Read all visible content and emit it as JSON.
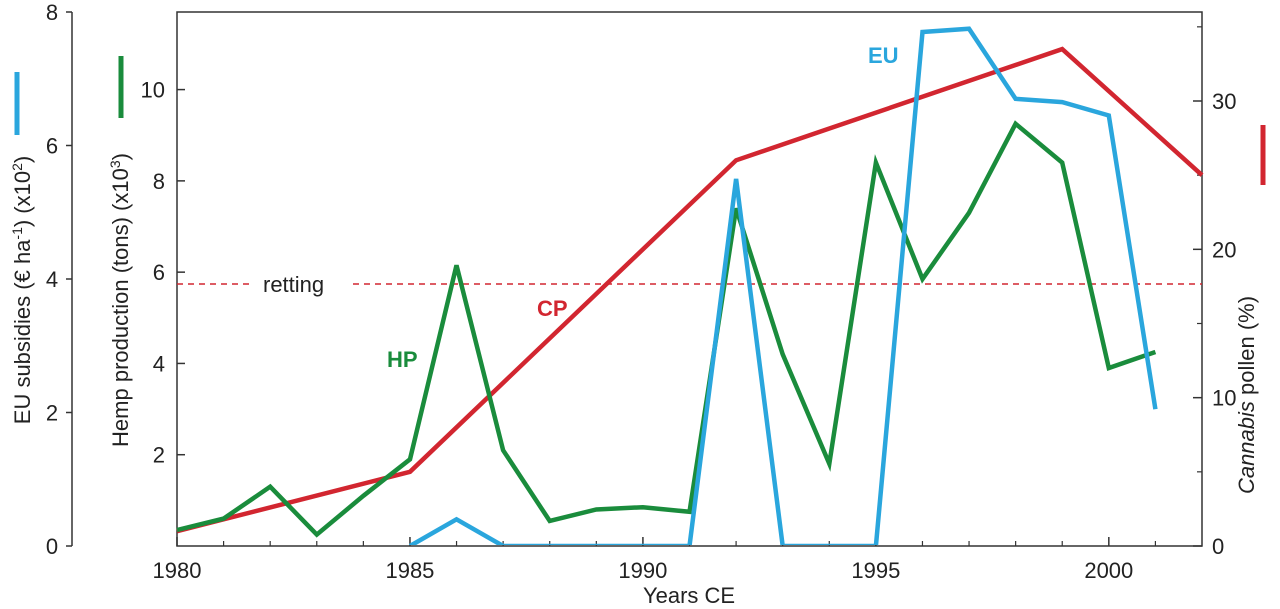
{
  "chart_data": {
    "type": "line",
    "xlabel": "Years CE",
    "xlim": [
      1980,
      2002
    ],
    "x_ticks": [
      "1980",
      "1985",
      "1990",
      "1995",
      "2000"
    ],
    "axes": {
      "eu": {
        "label_parts": [
          "EU subsidies (€ ha",
          "-1",
          ") (x10",
          "2",
          ")"
        ],
        "ylim": [
          0,
          8
        ],
        "ticks": [
          "0",
          "2",
          "4",
          "6",
          "8"
        ],
        "color": "#2aa6dd"
      },
      "hp": {
        "label_parts": [
          "Hemp production (tons) (x10",
          "3",
          ")"
        ],
        "ylim": [
          0,
          11.7
        ],
        "ticks": [
          "2",
          "4",
          "6",
          "8",
          "10"
        ],
        "color": "#1a8c3c"
      },
      "cp": {
        "label_parts": [
          "Cannabis",
          " pollen (%)"
        ],
        "ylim": [
          0,
          36
        ],
        "ticks": [
          "0",
          "10",
          "20",
          "30"
        ],
        "color": "#d22630"
      }
    },
    "series": [
      {
        "name": "HP",
        "axis": "hp",
        "color": "#1a8c3c",
        "x": [
          1980,
          1981,
          1982,
          1983,
          1984,
          1985,
          1986,
          1987,
          1988,
          1989,
          1990,
          1991,
          1992,
          1993,
          1994,
          1995,
          1996,
          1997,
          1998,
          1999,
          2000,
          2001
        ],
        "y": [
          0.35,
          0.6,
          1.3,
          0.25,
          1.1,
          1.9,
          6.15,
          2.1,
          0.55,
          0.8,
          0.85,
          0.75,
          7.4,
          4.2,
          1.8,
          8.4,
          5.85,
          7.3,
          9.25,
          8.4,
          3.9,
          4.25
        ]
      },
      {
        "name": "EU",
        "axis": "eu",
        "color": "#2aa6dd",
        "x": [
          1985,
          1986,
          1987,
          1988,
          1989,
          1990,
          1991,
          1992,
          1993,
          1994,
          1995,
          1996,
          1997,
          1998,
          1999,
          2000,
          2001
        ],
        "y": [
          0,
          0.4,
          0,
          0,
          0,
          0,
          0,
          5.5,
          0,
          0,
          0,
          7.7,
          7.75,
          6.7,
          6.65,
          6.45,
          2.05
        ]
      },
      {
        "name": "CP",
        "axis": "cp",
        "color": "#d22630",
        "x": [
          1980,
          1985,
          1992,
          1999,
          2002
        ],
        "y": [
          1,
          5,
          26,
          33.5,
          25
        ]
      }
    ],
    "annotations": [
      {
        "text": "retting",
        "axis": "cp",
        "y": 20,
        "style": "dashed",
        "color": "#d22630"
      }
    ],
    "grid": false,
    "legend": "none"
  }
}
